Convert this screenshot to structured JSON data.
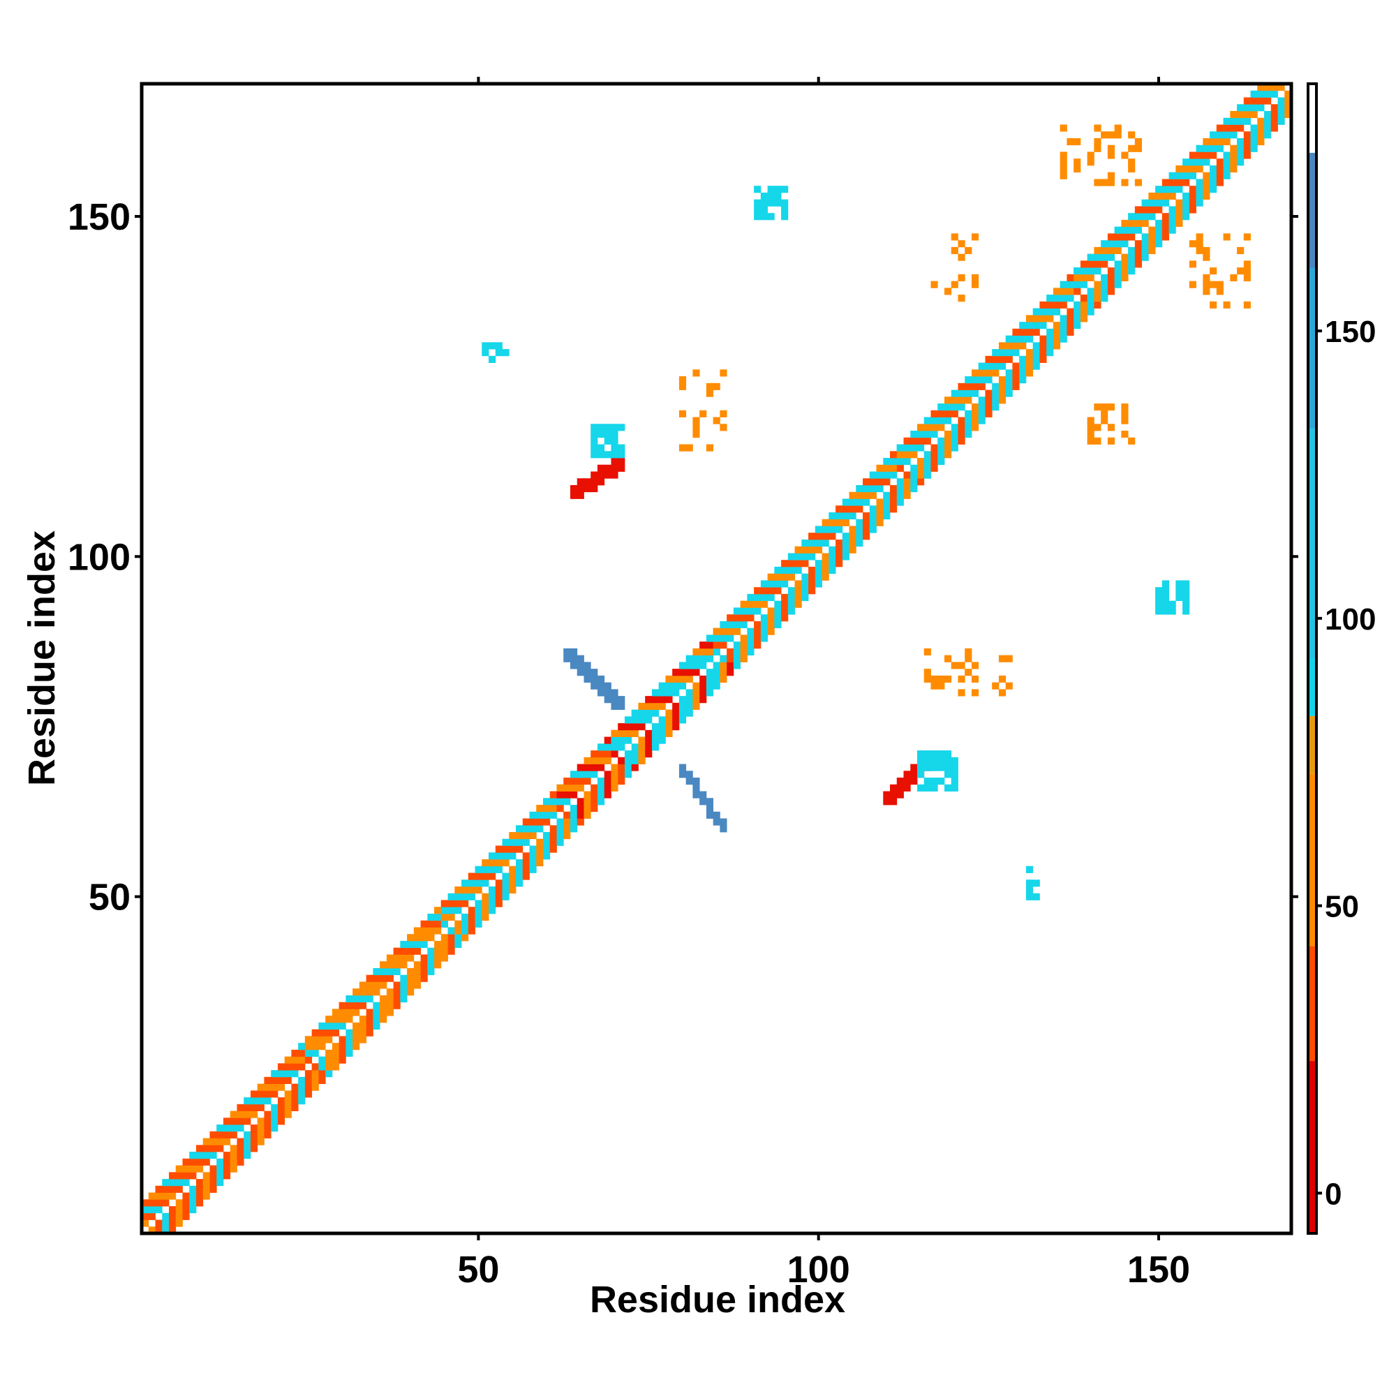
{
  "chart_data": {
    "type": "heatmap",
    "title": "",
    "xlabel": "Residue index",
    "ylabel": "Residue index",
    "xlim": [
      1,
      169
    ],
    "ylim": [
      1,
      169
    ],
    "x_ticks": [
      50,
      100,
      150
    ],
    "y_ticks": [
      50,
      100,
      150
    ],
    "x_tick_labels": [
      "50",
      "100",
      "150"
    ],
    "y_tick_labels": [
      "50",
      "100",
      "150"
    ],
    "grid": false,
    "symmetric": true,
    "colorbar": {
      "ticks": [
        0,
        50,
        100,
        150
      ],
      "tick_labels": [
        "0",
        "50",
        "100",
        "150"
      ],
      "range": [
        -7,
        193
      ],
      "bands": [
        {
          "from": -7,
          "to": 23,
          "color": "#e00000"
        },
        {
          "from": 23,
          "to": 43,
          "color": "#ff4a00"
        },
        {
          "from": 43,
          "to": 73,
          "color": "#ff8a00"
        },
        {
          "from": 73,
          "to": 83,
          "color": "#e59a10"
        },
        {
          "from": 83,
          "to": 93,
          "color": "#13d3e8"
        },
        {
          "from": 93,
          "to": 133,
          "color": "#25c3df"
        },
        {
          "from": 133,
          "to": 161,
          "color": "#2aa8d8"
        },
        {
          "from": 161,
          "to": 181,
          "color": "#4a86c0"
        },
        {
          "from": 181,
          "to": 193,
          "color": "#ffffff"
        }
      ]
    },
    "colors": {
      "red": "#e81000",
      "red_orange": "#ff4d00",
      "orange": "#ff8c00",
      "cyan": "#16d6ea",
      "light_blue": "#33b4df",
      "steel_blue": "#4a88c2"
    },
    "diagonal_band": {
      "description_values": "contacts along i≈j for residues 1–169",
      "segments": [
        {
          "from": 1,
          "to": 25,
          "pattern": [
            "red_orange",
            "orange",
            "red_orange",
            "cyan"
          ]
        },
        {
          "from": 25,
          "to": 45,
          "pattern": [
            "orange",
            "red_orange",
            "cyan",
            "orange"
          ]
        },
        {
          "from": 45,
          "to": 62,
          "pattern": [
            "red_orange",
            "cyan",
            "orange",
            "cyan"
          ]
        },
        {
          "from": 62,
          "to": 70,
          "pattern": [
            "red",
            "orange",
            "red_orange",
            "cyan"
          ]
        },
        {
          "from": 70,
          "to": 85,
          "pattern": [
            "cyan",
            "orange",
            "red",
            "cyan"
          ]
        },
        {
          "from": 85,
          "to": 112,
          "pattern": [
            "orange",
            "cyan",
            "red_orange",
            "cyan"
          ]
        },
        {
          "from": 112,
          "to": 138,
          "pattern": [
            "red_orange",
            "cyan",
            "orange",
            "cyan"
          ]
        },
        {
          "from": 138,
          "to": 169,
          "pattern": [
            "orange",
            "cyan",
            "red_orange",
            "cyan"
          ]
        }
      ]
    },
    "off_diagonal_blocks": [
      {
        "x": [
          64,
          71
        ],
        "y": [
          109,
          114
        ],
        "color": "red",
        "shape": "strand"
      },
      {
        "x": [
          67,
          71
        ],
        "y": [
          115,
          119
        ],
        "color": "cyan",
        "shape": "blob"
      },
      {
        "x": [
          63,
          71
        ],
        "y": [
          78,
          86
        ],
        "color": "steel_blue",
        "shape": "antiparallel"
      },
      {
        "x": [
          80,
          86
        ],
        "y": [
          60,
          69
        ],
        "color": "steel_blue",
        "shape": "antiparallel"
      },
      {
        "x": [
          110,
          116
        ],
        "y": [
          64,
          70
        ],
        "color": "red",
        "shape": "strand"
      },
      {
        "x": [
          115,
          120
        ],
        "y": [
          66,
          71
        ],
        "color": "cyan",
        "shape": "blob"
      },
      {
        "x": [
          150,
          154
        ],
        "y": [
          92,
          96
        ],
        "color": "cyan",
        "shape": "blob"
      },
      {
        "x": [
          91,
          95
        ],
        "y": [
          150,
          154
        ],
        "color": "cyan",
        "shape": "blob"
      },
      {
        "x": [
          140,
          146
        ],
        "y": [
          116,
          122
        ],
        "color": "orange",
        "shape": "scatter"
      },
      {
        "x": [
          117,
          123
        ],
        "y": [
          138,
          147
        ],
        "color": "orange",
        "shape": "scatter"
      },
      {
        "x": [
          80,
          86
        ],
        "y": [
          116,
          128
        ],
        "color": "orange",
        "shape": "scatter"
      },
      {
        "x": [
          116,
          128
        ],
        "y": [
          80,
          86
        ],
        "color": "orange",
        "shape": "scatter"
      },
      {
        "x": [
          131,
          132
        ],
        "y": [
          50,
          54
        ],
        "color": "cyan",
        "shape": "blob"
      },
      {
        "x": [
          51,
          54
        ],
        "y": [
          129,
          131
        ],
        "color": "cyan",
        "shape": "blob"
      },
      {
        "x": [
          155,
          163
        ],
        "y": [
          136,
          147
        ],
        "color": "orange",
        "shape": "scatter"
      },
      {
        "x": [
          136,
          147
        ],
        "y": [
          155,
          163
        ],
        "color": "orange",
        "shape": "scatter"
      }
    ]
  }
}
